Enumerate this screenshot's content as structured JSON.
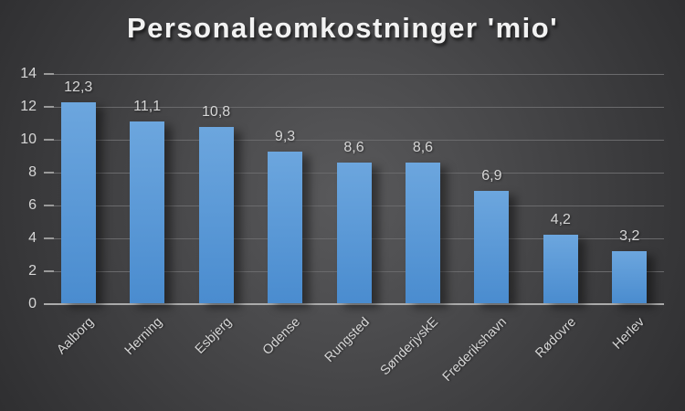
{
  "chart_data": {
    "type": "bar",
    "title": "Personaleomkostninger 'mio'",
    "categories": [
      "Aalborg",
      "Herning",
      "Esbjerg",
      "Odense",
      "Rungsted",
      "SønderjyskE",
      "Frederikshavn",
      "Rødovre",
      "Herlev"
    ],
    "values": [
      12.3,
      11.1,
      10.8,
      9.3,
      8.6,
      8.6,
      6.9,
      4.2,
      3.2
    ],
    "value_labels": [
      "12,3",
      "11,1",
      "10,8",
      "9,3",
      "8,6",
      "8,6",
      "6,9",
      "4,2",
      "3,2"
    ],
    "xlabel": "",
    "ylabel": "",
    "ylim": [
      0,
      14
    ],
    "y_ticks": [
      0,
      2,
      4,
      6,
      8,
      10,
      12,
      14
    ],
    "y_tick_labels": [
      "0",
      "2",
      "4",
      "6",
      "8",
      "10",
      "12",
      "14"
    ],
    "grid": true,
    "legend": "none",
    "decimal_separator": ",",
    "colors": {
      "bar_top": "#6ca6de",
      "bar_bottom": "#4a8ccf",
      "gridline": "#6a6a6c",
      "tick_mark": "#9a9a9a",
      "axis_line": "#ababab",
      "title_text": "#f2f2f2",
      "label_text": "#d6d6d6",
      "background_center": "#59595b",
      "background_edge": "#232326"
    }
  }
}
